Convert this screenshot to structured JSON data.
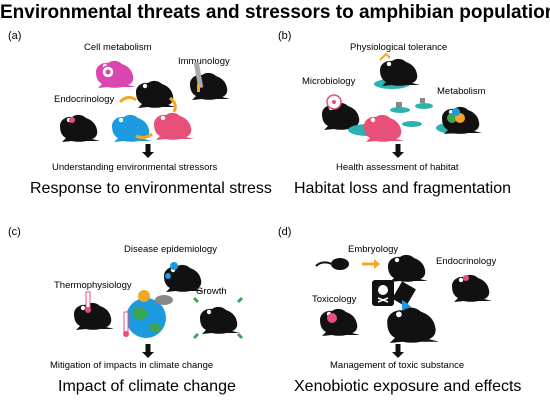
{
  "title": "Environmental threats and stressors to amphibian populations",
  "panels": {
    "a": {
      "tag": "(a)",
      "labels": {
        "cell_metabolism": "Cell metabolism",
        "immunology": "Immunology",
        "endocrinology": "Endocrinology"
      },
      "outcome": "Understanding environmental stressors",
      "caption": "Response to environmental stress"
    },
    "b": {
      "tag": "(b)",
      "labels": {
        "physiological_tolerance": "Physiological tolerance",
        "microbiology": "Microbiology",
        "metabolism": "Metabolism"
      },
      "outcome": "Health assessment of habitat",
      "caption": "Habitat loss and fragmentation"
    },
    "c": {
      "tag": "(c)",
      "labels": {
        "disease_epidemiology": "Disease epidemiology",
        "thermophysiology": "Thermophysiology",
        "growth": "Growth"
      },
      "outcome": "Mitigation of impacts in climate change",
      "caption": "Impact of climate change"
    },
    "d": {
      "tag": "(d)",
      "labels": {
        "embryology": "Embryology",
        "endocrinology": "Endocrinology",
        "toxicology": "Toxicology"
      },
      "outcome": "Management of toxic substance",
      "caption": "Xenobiotic exposure and effects"
    }
  },
  "colors": {
    "frog": "#111111",
    "pink": "#e8507a",
    "blue": "#1e9be0",
    "orange": "#f5a623",
    "teal": "#2ab3b0",
    "green": "#3aa655",
    "magenta": "#d946b0"
  }
}
